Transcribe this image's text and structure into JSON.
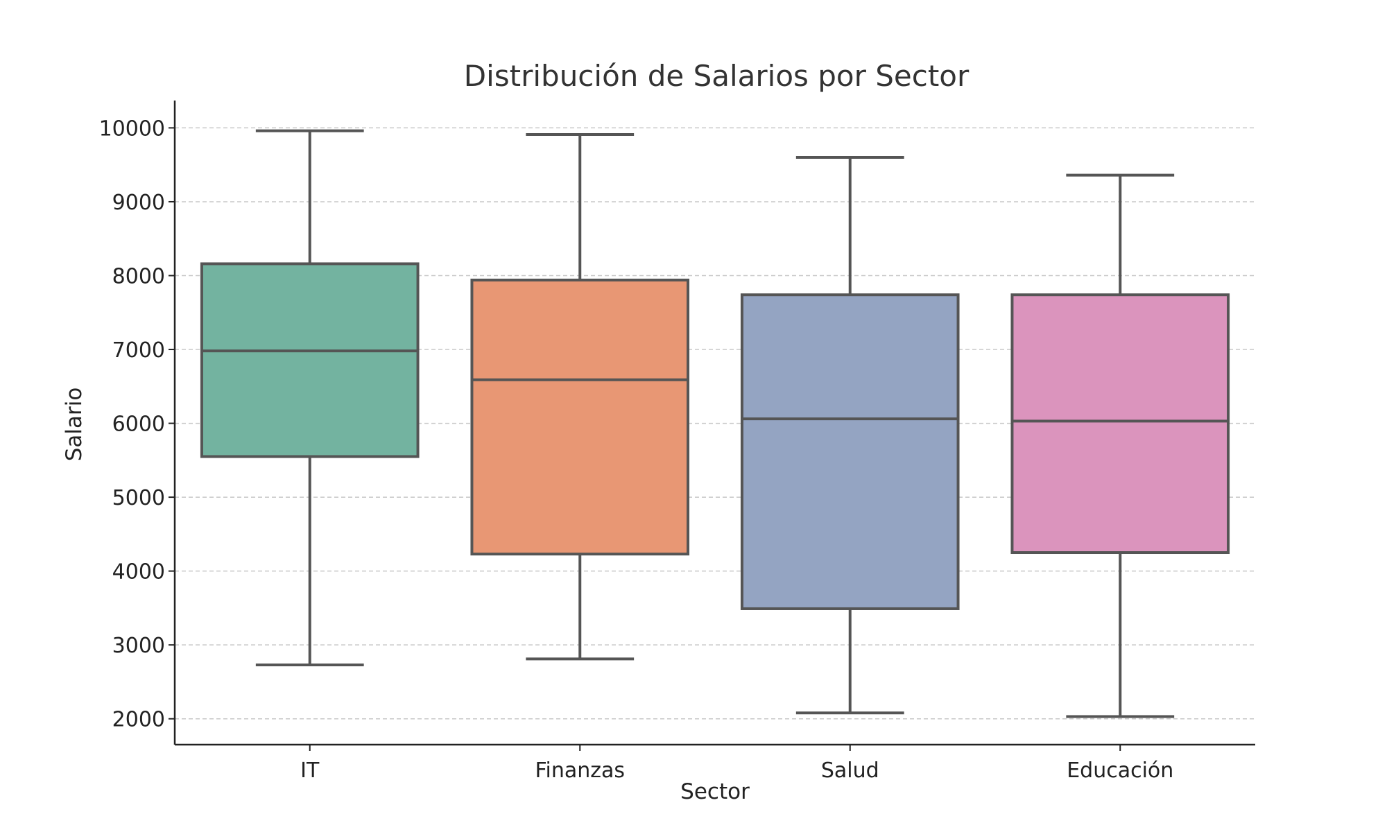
{
  "chart_data": {
    "type": "box",
    "title": "Distribución de Salarios por Sector",
    "xlabel": "Sector",
    "ylabel": "Salario",
    "ylim": [
      1650,
      10370
    ],
    "yticks": [
      2000,
      3000,
      4000,
      5000,
      6000,
      7000,
      8000,
      9000,
      10000
    ],
    "ytick_labels": [
      "2000",
      "3000",
      "4000",
      "5000",
      "6000",
      "7000",
      "8000",
      "9000",
      "10000"
    ],
    "grid": "horizontal dashed",
    "categories": [
      "IT",
      "Finanzas",
      "Salud",
      "Educación"
    ],
    "boxes": [
      {
        "category": "IT",
        "min": 2730,
        "q1": 5550,
        "median": 6980,
        "q3": 8160,
        "max": 9960,
        "color": "#73b3a0"
      },
      {
        "category": "Finanzas",
        "min": 2810,
        "q1": 4230,
        "median": 6590,
        "q3": 7940,
        "max": 9910,
        "color": "#e89774"
      },
      {
        "category": "Salud",
        "min": 2080,
        "q1": 3490,
        "median": 6060,
        "q3": 7740,
        "max": 9600,
        "color": "#94a4c2"
      },
      {
        "category": "Educación",
        "min": 2030,
        "q1": 4250,
        "median": 6030,
        "q3": 7740,
        "max": 9360,
        "color": "#db94bd"
      }
    ]
  }
}
